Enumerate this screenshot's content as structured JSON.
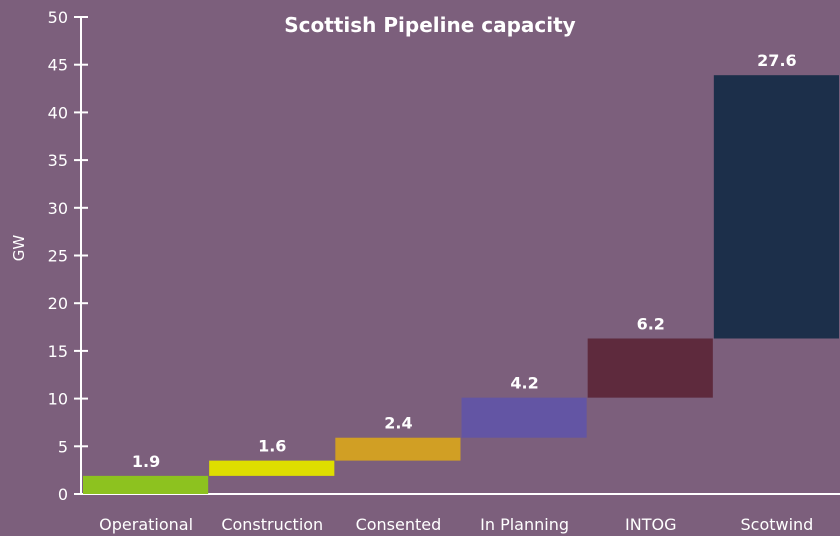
{
  "chart_data": {
    "type": "bar",
    "subtype": "waterfall",
    "title": "Scottish Pipeline capacity",
    "ylabel": "GW",
    "xlabel": "",
    "ylim": [
      0,
      50
    ],
    "yticks": [
      0,
      5,
      10,
      15,
      20,
      25,
      30,
      35,
      40,
      45,
      50
    ],
    "grid": false,
    "categories": [
      "Operational",
      "Construction",
      "Consented",
      "In Planning",
      "INTOG",
      "Scotwind"
    ],
    "values": [
      1.9,
      1.6,
      2.4,
      4.2,
      6.2,
      27.6
    ],
    "value_labels": [
      "1.9",
      "1.6",
      "2.4",
      "4.2",
      "6.2",
      "27.6"
    ],
    "colors": [
      "#8dc21f",
      "#dede00",
      "#d19f24",
      "#6355a4",
      "#5e2a3d",
      "#1c2f4a"
    ]
  }
}
